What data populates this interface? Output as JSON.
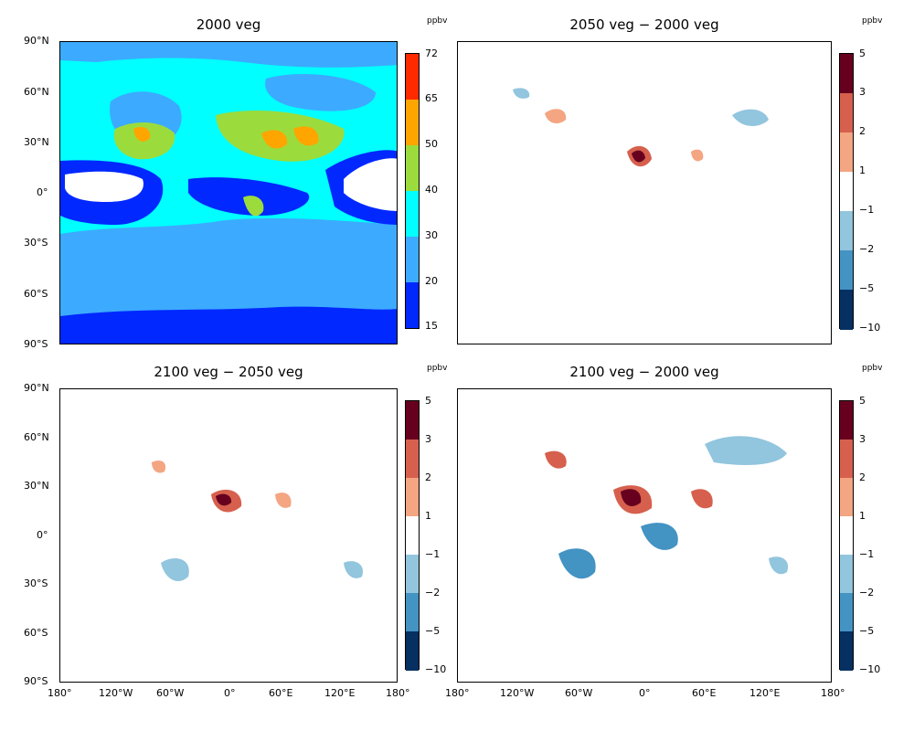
{
  "panels": [
    {
      "title": "2000 veg",
      "unit": "ppbv",
      "type": "absolute"
    },
    {
      "title": "2050 veg  −  2000 veg",
      "unit": "ppbv",
      "type": "difference"
    },
    {
      "title": "2100 veg  −  2050 veg",
      "unit": "ppbv",
      "type": "difference"
    },
    {
      "title": "2100 veg  −  2000 veg",
      "unit": "ppbv",
      "type": "difference"
    }
  ],
  "lat_ticks": [
    "90°N",
    "60°N",
    "30°N",
    "0°",
    "30°S",
    "60°S",
    "90°S"
  ],
  "lon_ticks": [
    "180°",
    "120°W",
    "60°W",
    "0°",
    "60°E",
    "120°E",
    "180°"
  ],
  "colorbar_absolute": {
    "labels": [
      "72",
      "65",
      "50",
      "40",
      "30",
      "20",
      "15"
    ],
    "colors": [
      "#ff2a00",
      "#ffa500",
      "#9bdc3c",
      "#00ffff",
      "#3caaff",
      "#0028ff"
    ]
  },
  "colorbar_difference": {
    "labels": [
      "5",
      "3",
      "2",
      "1",
      "−1",
      "−2",
      "−5",
      "−10"
    ],
    "colors": [
      "#67001f",
      "#d6604d",
      "#f4a582",
      "#ffffff",
      "#92c5de",
      "#4393c3",
      "#053061"
    ]
  }
}
